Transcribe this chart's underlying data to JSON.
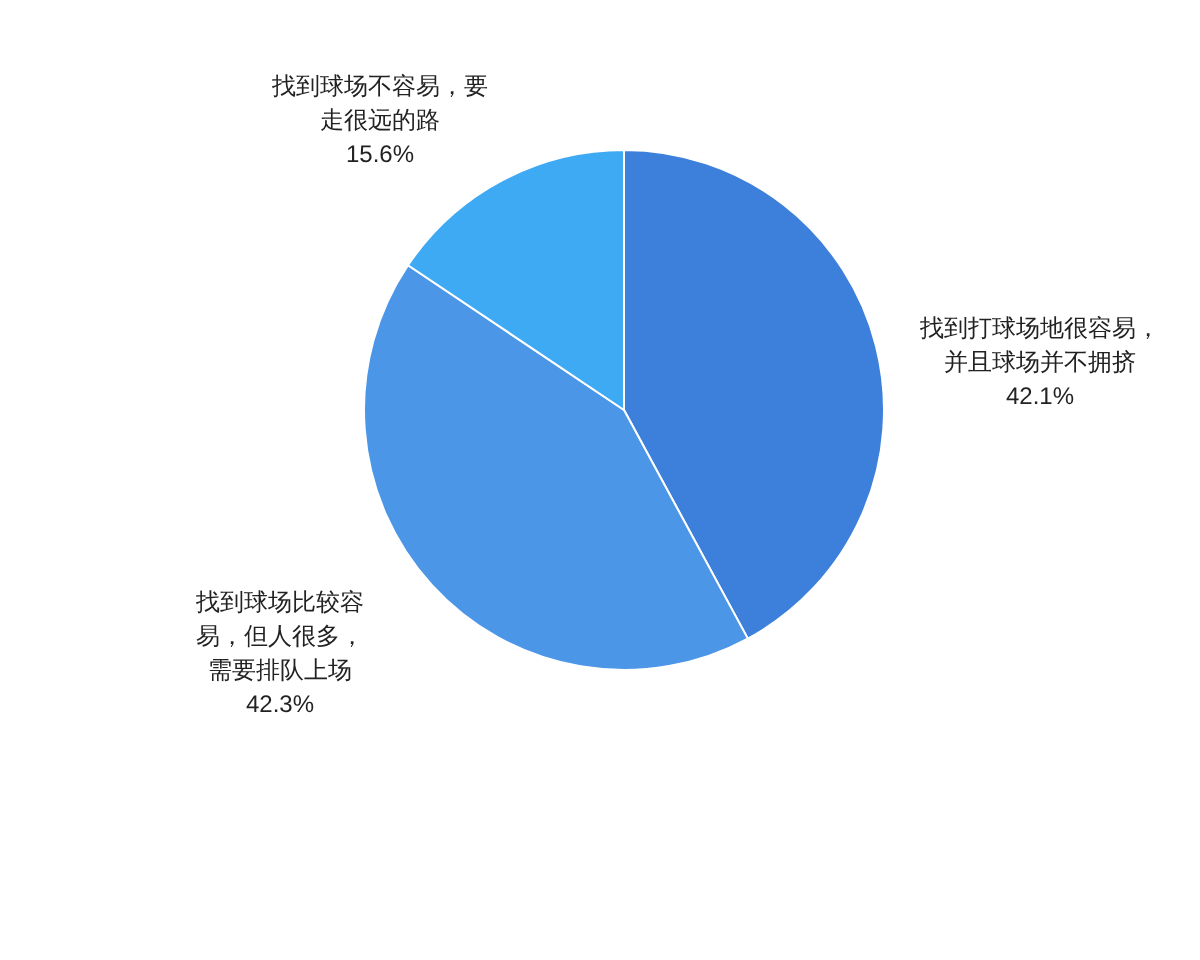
{
  "chart_data": {
    "type": "pie",
    "categories": [
      "找到打球场地很容易，并且球场并不拥挤",
      "找到球场比较容易，但人很多，需要排队上场",
      "找到球场不容易，要走很远的路"
    ],
    "values": [
      42.1,
      42.3,
      15.6
    ],
    "colors": [
      "#3d80dc",
      "#4b96e6",
      "#3faaf4"
    ],
    "value_labels": [
      "42.1%",
      "42.3%",
      "15.6%"
    ],
    "legend": false
  }
}
